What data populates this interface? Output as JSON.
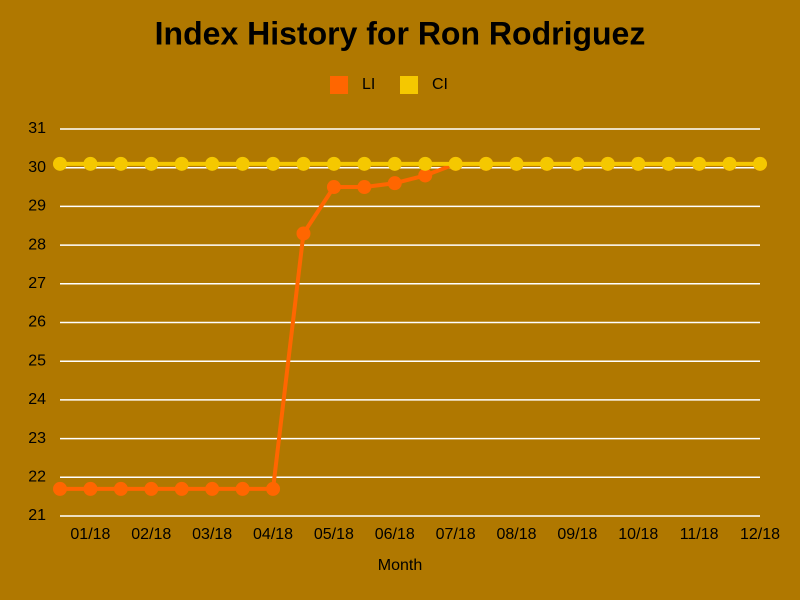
{
  "chart_data": {
    "type": "line",
    "title": "Index History for Ron Rodriguez",
    "x_label": "Month",
    "categories": [
      null,
      "01/18",
      null,
      "02/18",
      null,
      "03/18",
      null,
      "04/18",
      null,
      "05/18",
      null,
      "06/18",
      null,
      "07/18",
      null,
      "08/18",
      null,
      "09/18",
      null,
      "10/18",
      null,
      "11/18",
      null,
      "12/18"
    ],
    "series": [
      {
        "name": "LI",
        "color": "#ff6600",
        "values": [
          21.7,
          21.7,
          21.7,
          21.7,
          21.7,
          21.7,
          21.7,
          21.7,
          28.3,
          29.5,
          29.5,
          29.6,
          29.8,
          30.1,
          30.1,
          30.1,
          30.1,
          30.1,
          30.1,
          30.1,
          30.1,
          30.1,
          30.1,
          30.1
        ]
      },
      {
        "name": "CI",
        "color": "#f5c800",
        "values": [
          30.1,
          30.1,
          30.1,
          30.1,
          30.1,
          30.1,
          30.1,
          30.1,
          30.1,
          30.1,
          30.1,
          30.1,
          30.1,
          30.1,
          30.1,
          30.1,
          30.1,
          30.1,
          30.1,
          30.1,
          30.1,
          30.1,
          30.1,
          30.1
        ]
      }
    ],
    "ylim": [
      21,
      31
    ],
    "yticks": [
      21,
      22,
      23,
      24,
      25,
      26,
      27,
      28,
      29,
      30,
      31
    ],
    "grid": true,
    "background": "#b07800"
  }
}
